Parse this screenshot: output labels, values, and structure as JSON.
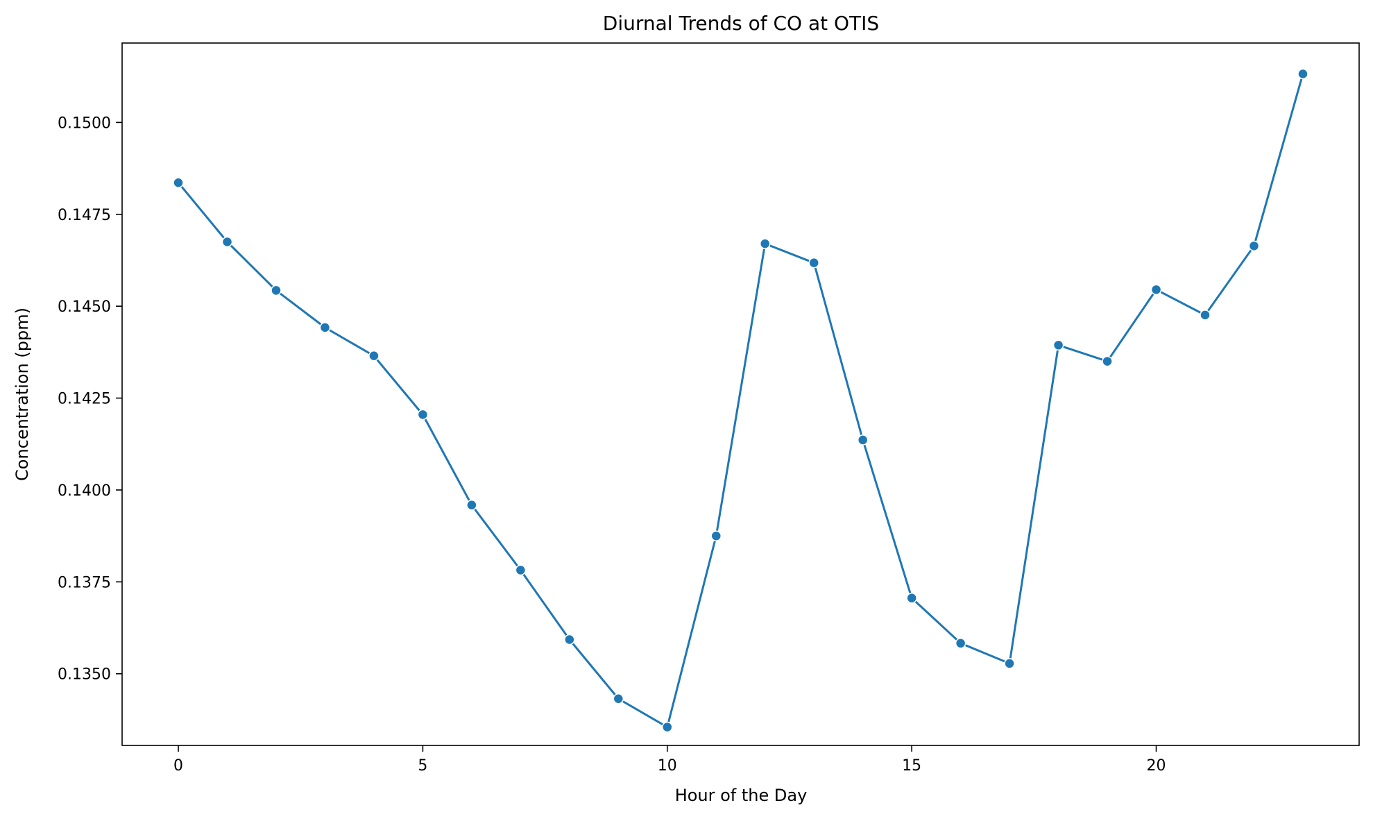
{
  "chart_data": {
    "type": "line",
    "title": "Diurnal Trends of CO at OTIS",
    "xlabel": "Hour of the Day",
    "ylabel": "Concentration (ppm)",
    "x": [
      0,
      1,
      2,
      3,
      4,
      5,
      6,
      7,
      8,
      9,
      10,
      11,
      12,
      13,
      14,
      15,
      16,
      17,
      18,
      19,
      20,
      21,
      22,
      23
    ],
    "series": [
      {
        "name": "",
        "values": [
          0.14836,
          0.14675,
          0.14543,
          0.14442,
          0.14365,
          0.14205,
          0.13959,
          0.13782,
          0.13593,
          0.13432,
          0.13355,
          0.13875,
          0.1467,
          0.14618,
          0.14136,
          0.13706,
          0.13583,
          0.13528,
          0.14394,
          0.1435,
          0.14545,
          0.14476,
          0.14664,
          0.15132
        ],
        "color": "#1f77b4"
      }
    ],
    "xticks": [
      "0",
      "5",
      "10",
      "15",
      "20"
    ],
    "yticks": [
      "0.1350",
      "0.1375",
      "0.1400",
      "0.1425",
      "0.1450",
      "0.1475",
      "0.1500"
    ],
    "xlim": [
      -1.15,
      24.15
    ],
    "ylim": [
      0.13305,
      0.15216
    ],
    "grid": false,
    "legend": "none"
  }
}
